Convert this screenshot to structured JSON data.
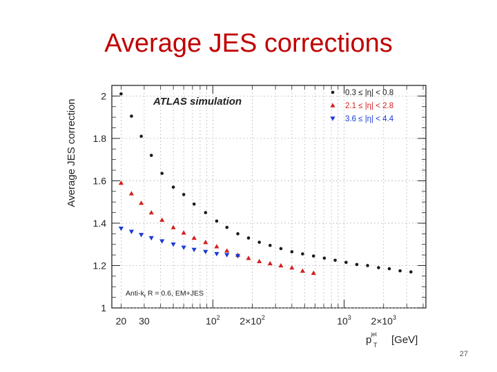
{
  "slide": {
    "title": "Average JES corrections",
    "page_number": "27"
  },
  "chart_data": {
    "type": "scatter",
    "title": "ATLAS simulation",
    "xlabel": "p_T^jet [GeV]",
    "xlabel_main": "p",
    "xlabel_sub": "T",
    "xlabel_sup": "jet",
    "xlabel_unit": "[GeV]",
    "ylabel": "Average JES correction",
    "xscale": "log",
    "xlim": [
      17,
      4200
    ],
    "ylim": [
      1.0,
      2.05
    ],
    "yticks": [
      1,
      1.2,
      1.4,
      1.6,
      1.8,
      2
    ],
    "ytick_labels": [
      "1",
      "1.2",
      "1.4",
      "1.6",
      "1.8",
      "2"
    ],
    "xtick_labels": [
      {
        "x": 20,
        "text": "20"
      },
      {
        "x": 30,
        "text": "30"
      },
      {
        "x": 100,
        "base": "10",
        "exp": "2"
      },
      {
        "x": 200,
        "base": "2×10",
        "exp": "2"
      },
      {
        "x": 1000,
        "base": "10",
        "exp": "3"
      },
      {
        "x": 2000,
        "base": "2×10",
        "exp": "3"
      }
    ],
    "annotation": "Anti-k_t R = 0.6, EM+JES",
    "annotation_parts": [
      "Anti-k",
      "t",
      " R = 0.6, EM+JES"
    ],
    "legend_position": "top-right",
    "series": [
      {
        "name": "0.3 ≤ |η| < 0.8",
        "color": "#1a1a1a",
        "marker": "circle",
        "x": [
          20,
          24,
          28.5,
          34,
          41,
          50,
          60,
          72,
          88,
          107,
          128,
          155,
          187,
          226,
          273,
          330,
          400,
          483,
          585,
          707,
          855,
          1035,
          1250,
          1510,
          1830,
          2210,
          2670,
          3230
        ],
        "y": [
          2.01,
          1.905,
          1.81,
          1.72,
          1.635,
          1.57,
          1.535,
          1.49,
          1.45,
          1.41,
          1.38,
          1.35,
          1.33,
          1.31,
          1.295,
          1.28,
          1.265,
          1.255,
          1.245,
          1.235,
          1.225,
          1.215,
          1.205,
          1.2,
          1.19,
          1.185,
          1.175,
          1.17
        ]
      },
      {
        "name": "2.1 ≤ |η| < 2.8",
        "color": "#d42020",
        "marker": "triangle-up",
        "x": [
          20,
          24,
          28.5,
          34,
          41,
          50,
          60,
          72,
          88,
          107,
          128,
          155,
          187,
          226,
          273,
          330,
          400,
          483,
          585
        ],
        "y": [
          1.59,
          1.54,
          1.495,
          1.45,
          1.415,
          1.38,
          1.355,
          1.33,
          1.31,
          1.29,
          1.27,
          1.25,
          1.235,
          1.22,
          1.21,
          1.2,
          1.19,
          1.175,
          1.165
        ]
      },
      {
        "name": "3.6 ≤ |η| < 4.4",
        "color": "#1a3ad4",
        "marker": "triangle-down",
        "x": [
          20,
          24,
          28.5,
          34,
          41,
          50,
          60,
          72,
          88,
          107,
          128,
          155
        ],
        "y": [
          1.375,
          1.36,
          1.345,
          1.33,
          1.315,
          1.3,
          1.285,
          1.275,
          1.265,
          1.255,
          1.25,
          1.245
        ]
      }
    ]
  }
}
